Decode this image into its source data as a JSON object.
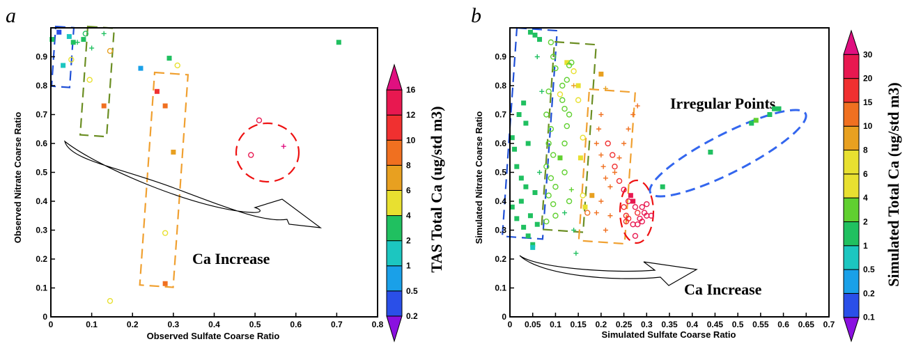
{
  "figure": {
    "panels": [
      {
        "id": "a",
        "letter": "a"
      },
      {
        "id": "b",
        "letter": "b"
      }
    ]
  },
  "colors": {
    "blue_dash": "#1f4fd6",
    "green_dash": "#6b8e23",
    "orange_dash": "#f0a030",
    "red_dash": "#ee1111",
    "blue_ellipse": "#3366ee",
    "arrow": "#000000"
  },
  "chart_data": [
    {
      "type": "scatter",
      "panel": "a",
      "xlabel": "Observed Sulfate Coarse Ratio",
      "ylabel": "Observed Nitrate Coarse Ratio",
      "xlim": [
        0,
        0.8
      ],
      "ylim": [
        0,
        1.0
      ],
      "xticks": [
        "0",
        "0.1",
        "0.2",
        "0.3",
        "0.4",
        "0.5",
        "0.6",
        "0.7",
        "0.8"
      ],
      "yticks": [
        "0",
        "0.1",
        "0.2",
        "0.3",
        "0.4",
        "0.5",
        "0.6",
        "0.7",
        "0.8",
        "0.9"
      ],
      "colorbar": {
        "label": "TAS Total Ca (ug/std m3)",
        "levels": [
          "0.2",
          "0.5",
          "1",
          "2",
          "4",
          "6",
          "8",
          "10",
          "12",
          "16"
        ]
      },
      "annotations": [
        {
          "text": "Ca Increase"
        }
      ],
      "points": [
        {
          "x": 0.003,
          "y": 0.96,
          "c": 2,
          "m": "sq"
        },
        {
          "x": 0.02,
          "y": 0.985,
          "c": 0.3,
          "m": "sq"
        },
        {
          "x": 0.03,
          "y": 0.87,
          "c": 1.5,
          "m": "sq"
        },
        {
          "x": 0.045,
          "y": 0.97,
          "c": 1.5,
          "m": "sq"
        },
        {
          "x": 0.055,
          "y": 0.95,
          "c": 2,
          "m": "sq"
        },
        {
          "x": 0.05,
          "y": 0.89,
          "c": 4,
          "m": "o"
        },
        {
          "x": 0.065,
          "y": 0.95,
          "c": 2,
          "m": "+"
        },
        {
          "x": 0.08,
          "y": 0.96,
          "c": 2,
          "m": "sq"
        },
        {
          "x": 0.085,
          "y": 0.98,
          "c": 3,
          "m": "o"
        },
        {
          "x": 0.1,
          "y": 0.93,
          "c": 3,
          "m": "+"
        },
        {
          "x": 0.095,
          "y": 0.82,
          "c": 4,
          "m": "o"
        },
        {
          "x": 0.13,
          "y": 0.98,
          "c": 3,
          "m": "+"
        },
        {
          "x": 0.145,
          "y": 0.92,
          "c": 6,
          "m": "o"
        },
        {
          "x": 0.13,
          "y": 0.73,
          "c": 9,
          "m": "sq"
        },
        {
          "x": 0.22,
          "y": 0.86,
          "c": 0.6,
          "m": "sq"
        },
        {
          "x": 0.29,
          "y": 0.895,
          "c": 3,
          "m": "sq"
        },
        {
          "x": 0.31,
          "y": 0.87,
          "c": 5,
          "m": "o"
        },
        {
          "x": 0.26,
          "y": 0.78,
          "c": 11,
          "m": "sq"
        },
        {
          "x": 0.28,
          "y": 0.73,
          "c": 9,
          "m": "sq"
        },
        {
          "x": 0.3,
          "y": 0.57,
          "c": 7,
          "m": "sq"
        },
        {
          "x": 0.28,
          "y": 0.29,
          "c": 5,
          "m": "o"
        },
        {
          "x": 0.28,
          "y": 0.115,
          "c": 9,
          "m": "sq"
        },
        {
          "x": 0.145,
          "y": 0.055,
          "c": 5,
          "m": "o"
        },
        {
          "x": 0.51,
          "y": 0.68,
          "c": 15,
          "m": "o"
        },
        {
          "x": 0.49,
          "y": 0.56,
          "c": 15,
          "m": "o"
        },
        {
          "x": 0.57,
          "y": 0.59,
          "c": 16,
          "m": "+"
        },
        {
          "x": 0.705,
          "y": 0.95,
          "c": 2,
          "m": "sq"
        }
      ]
    },
    {
      "type": "scatter",
      "panel": "b",
      "xlabel": "Simulated Sulfate Coarse Ratio",
      "ylabel": "Simulated Nitrate Coarse Ratio",
      "xlim": [
        0,
        0.7
      ],
      "ylim": [
        0,
        1.0
      ],
      "xticks": [
        "0",
        "0.05",
        "0.1",
        "0.15",
        "0.2",
        "0.25",
        "0.3",
        "0.35",
        "0.4",
        "0.45",
        "0.5",
        "0.55",
        "0.6",
        "0.65",
        "0.7"
      ],
      "yticks": [
        "0",
        "0.1",
        "0.2",
        "0.3",
        "0.4",
        "0.5",
        "0.6",
        "0.7",
        "0.8",
        "0.9"
      ],
      "colorbar": {
        "label": "Simulated Total Ca (ug/std m3)",
        "levels": [
          "0.1",
          "0.2",
          "0.5",
          "1",
          "2",
          "4",
          "6",
          "8",
          "10",
          "15",
          "20",
          "30"
        ]
      },
      "annotations": [
        {
          "text": "Irregular Points"
        },
        {
          "text": "Ca Increase"
        }
      ],
      "points": [
        {
          "x": 0.045,
          "y": 0.985,
          "c": 1.5,
          "m": "sq"
        },
        {
          "x": 0.055,
          "y": 0.975,
          "c": 1.5,
          "m": "sq"
        },
        {
          "x": 0.065,
          "y": 0.96,
          "c": 1.5,
          "m": "sq"
        },
        {
          "x": 0.005,
          "y": 0.62,
          "c": 1.5,
          "m": "sq"
        },
        {
          "x": 0.01,
          "y": 0.58,
          "c": 1,
          "m": "sq"
        },
        {
          "x": 0.02,
          "y": 0.7,
          "c": 1,
          "m": "sq"
        },
        {
          "x": 0.03,
          "y": 0.74,
          "c": 1.5,
          "m": "sq"
        },
        {
          "x": 0.015,
          "y": 0.52,
          "c": 1,
          "m": "sq"
        },
        {
          "x": 0.035,
          "y": 0.67,
          "c": 1,
          "m": "sq"
        },
        {
          "x": 0.025,
          "y": 0.48,
          "c": 1.5,
          "m": "sq"
        },
        {
          "x": 0.04,
          "y": 0.6,
          "c": 1,
          "m": "sq"
        },
        {
          "x": 0.005,
          "y": 0.38,
          "c": 1,
          "m": "sq"
        },
        {
          "x": 0.015,
          "y": 0.34,
          "c": 1,
          "m": "sq"
        },
        {
          "x": 0.025,
          "y": 0.4,
          "c": 1.5,
          "m": "sq"
        },
        {
          "x": 0.03,
          "y": 0.31,
          "c": 1,
          "m": "sq"
        },
        {
          "x": 0.04,
          "y": 0.28,
          "c": 1,
          "m": "sq"
        },
        {
          "x": 0.05,
          "y": 0.25,
          "c": 1,
          "m": "sq"
        },
        {
          "x": 0.045,
          "y": 0.35,
          "c": 1.5,
          "m": "sq"
        },
        {
          "x": 0.055,
          "y": 0.43,
          "c": 1,
          "m": "sq"
        },
        {
          "x": 0.06,
          "y": 0.32,
          "c": 1,
          "m": "sq"
        },
        {
          "x": 0.035,
          "y": 0.45,
          "c": 1,
          "m": "sq"
        },
        {
          "x": 0.05,
          "y": 0.24,
          "c": 0.6,
          "m": "sq"
        },
        {
          "x": 0.06,
          "y": 0.9,
          "c": 1.5,
          "m": "+"
        },
        {
          "x": 0.07,
          "y": 0.78,
          "c": 1.5,
          "m": "+"
        },
        {
          "x": 0.065,
          "y": 0.5,
          "c": 1.5,
          "m": "+"
        },
        {
          "x": 0.09,
          "y": 0.95,
          "c": 2,
          "m": "o"
        },
        {
          "x": 0.095,
          "y": 0.9,
          "c": 2.5,
          "m": "o"
        },
        {
          "x": 0.1,
          "y": 0.86,
          "c": 3,
          "m": "o"
        },
        {
          "x": 0.085,
          "y": 0.78,
          "c": 2.5,
          "m": "o"
        },
        {
          "x": 0.08,
          "y": 0.7,
          "c": 2,
          "m": "o"
        },
        {
          "x": 0.09,
          "y": 0.65,
          "c": 2.5,
          "m": "o"
        },
        {
          "x": 0.085,
          "y": 0.6,
          "c": 2,
          "m": "o"
        },
        {
          "x": 0.095,
          "y": 0.56,
          "c": 2,
          "m": "o"
        },
        {
          "x": 0.08,
          "y": 0.52,
          "c": 2.5,
          "m": "o"
        },
        {
          "x": 0.09,
          "y": 0.48,
          "c": 2,
          "m": "o"
        },
        {
          "x": 0.1,
          "y": 0.45,
          "c": 2.5,
          "m": "o"
        },
        {
          "x": 0.085,
          "y": 0.42,
          "c": 2,
          "m": "o"
        },
        {
          "x": 0.095,
          "y": 0.39,
          "c": 3,
          "m": "o"
        },
        {
          "x": 0.1,
          "y": 0.35,
          "c": 2,
          "m": "o"
        },
        {
          "x": 0.08,
          "y": 0.33,
          "c": 2,
          "m": "o"
        },
        {
          "x": 0.11,
          "y": 0.55,
          "c": 3,
          "m": "sq"
        },
        {
          "x": 0.12,
          "y": 0.5,
          "c": 3,
          "m": "o"
        },
        {
          "x": 0.125,
          "y": 0.88,
          "c": 4,
          "m": "sq"
        },
        {
          "x": 0.13,
          "y": 0.87,
          "c": 3,
          "m": "o"
        },
        {
          "x": 0.135,
          "y": 0.88,
          "c": 3.5,
          "m": "o"
        },
        {
          "x": 0.14,
          "y": 0.85,
          "c": 6,
          "m": "o"
        },
        {
          "x": 0.125,
          "y": 0.82,
          "c": 3,
          "m": "o"
        },
        {
          "x": 0.115,
          "y": 0.8,
          "c": 3.5,
          "m": "o"
        },
        {
          "x": 0.11,
          "y": 0.77,
          "c": 4,
          "m": "o"
        },
        {
          "x": 0.115,
          "y": 0.75,
          "c": 3,
          "m": "o"
        },
        {
          "x": 0.12,
          "y": 0.72,
          "c": 2,
          "m": "o"
        },
        {
          "x": 0.13,
          "y": 0.7,
          "c": 3.5,
          "m": "o"
        },
        {
          "x": 0.125,
          "y": 0.66,
          "c": 3,
          "m": "o"
        },
        {
          "x": 0.12,
          "y": 0.6,
          "c": 2,
          "m": "o"
        },
        {
          "x": 0.13,
          "y": 0.4,
          "c": 3,
          "m": "o"
        },
        {
          "x": 0.135,
          "y": 0.44,
          "c": 2,
          "m": "+"
        },
        {
          "x": 0.12,
          "y": 0.36,
          "c": 1.5,
          "m": "+"
        },
        {
          "x": 0.14,
          "y": 0.3,
          "c": 1.5,
          "m": "+"
        },
        {
          "x": 0.145,
          "y": 0.22,
          "c": 1.5,
          "m": "+"
        },
        {
          "x": 0.15,
          "y": 0.8,
          "c": 7,
          "m": "sq"
        },
        {
          "x": 0.15,
          "y": 0.75,
          "c": 5,
          "m": "o"
        },
        {
          "x": 0.16,
          "y": 0.62,
          "c": 4,
          "m": "o"
        },
        {
          "x": 0.155,
          "y": 0.55,
          "c": 6,
          "m": "sq"
        },
        {
          "x": 0.16,
          "y": 0.42,
          "c": 7,
          "m": "o"
        },
        {
          "x": 0.165,
          "y": 0.38,
          "c": 6,
          "m": "sq"
        },
        {
          "x": 0.17,
          "y": 0.36,
          "c": 10,
          "m": "o"
        },
        {
          "x": 0.14,
          "y": 0.8,
          "c": 9,
          "m": "+"
        },
        {
          "x": 0.2,
          "y": 0.84,
          "c": 9,
          "m": "sq"
        },
        {
          "x": 0.21,
          "y": 0.79,
          "c": 8,
          "m": "+"
        },
        {
          "x": 0.2,
          "y": 0.7,
          "c": 11,
          "m": "+"
        },
        {
          "x": 0.195,
          "y": 0.65,
          "c": 12,
          "m": "+"
        },
        {
          "x": 0.19,
          "y": 0.6,
          "c": 11,
          "m": "+"
        },
        {
          "x": 0.2,
          "y": 0.56,
          "c": 12,
          "m": "+"
        },
        {
          "x": 0.205,
          "y": 0.52,
          "c": 11,
          "m": "+"
        },
        {
          "x": 0.21,
          "y": 0.48,
          "c": 12,
          "m": "+"
        },
        {
          "x": 0.22,
          "y": 0.45,
          "c": 11,
          "m": "+"
        },
        {
          "x": 0.23,
          "y": 0.5,
          "c": 12,
          "m": "+"
        },
        {
          "x": 0.24,
          "y": 0.55,
          "c": 11,
          "m": "+"
        },
        {
          "x": 0.25,
          "y": 0.6,
          "c": 12,
          "m": "+"
        },
        {
          "x": 0.26,
          "y": 0.65,
          "c": 11,
          "m": "+"
        },
        {
          "x": 0.27,
          "y": 0.7,
          "c": 12,
          "m": "+"
        },
        {
          "x": 0.28,
          "y": 0.73,
          "c": 11,
          "m": "+"
        },
        {
          "x": 0.2,
          "y": 0.4,
          "c": 12,
          "m": "+"
        },
        {
          "x": 0.19,
          "y": 0.36,
          "c": 11,
          "m": "+"
        },
        {
          "x": 0.22,
          "y": 0.35,
          "c": 10,
          "m": "+"
        },
        {
          "x": 0.21,
          "y": 0.3,
          "c": 12,
          "m": "+"
        },
        {
          "x": 0.18,
          "y": 0.42,
          "c": 8,
          "m": "sq"
        },
        {
          "x": 0.215,
          "y": 0.6,
          "c": 17,
          "m": "o"
        },
        {
          "x": 0.225,
          "y": 0.56,
          "c": 16,
          "m": "o"
        },
        {
          "x": 0.23,
          "y": 0.52,
          "c": 15,
          "m": "o"
        },
        {
          "x": 0.24,
          "y": 0.47,
          "c": 17,
          "m": "o"
        },
        {
          "x": 0.25,
          "y": 0.38,
          "c": 16,
          "m": "o"
        },
        {
          "x": 0.255,
          "y": 0.35,
          "c": 18,
          "m": "o"
        },
        {
          "x": 0.26,
          "y": 0.4,
          "c": 20,
          "m": "o"
        },
        {
          "x": 0.265,
          "y": 0.42,
          "c": 21,
          "m": "sq"
        },
        {
          "x": 0.27,
          "y": 0.4,
          "c": 23,
          "m": "sq"
        },
        {
          "x": 0.275,
          "y": 0.38,
          "c": 22,
          "m": "o"
        },
        {
          "x": 0.28,
          "y": 0.36,
          "c": 19,
          "m": "o"
        },
        {
          "x": 0.285,
          "y": 0.34,
          "c": 24,
          "m": "o"
        },
        {
          "x": 0.29,
          "y": 0.38,
          "c": 25,
          "m": "o"
        },
        {
          "x": 0.295,
          "y": 0.36,
          "c": 23,
          "m": "o"
        },
        {
          "x": 0.3,
          "y": 0.35,
          "c": 26,
          "m": "o"
        },
        {
          "x": 0.26,
          "y": 0.34,
          "c": 19,
          "m": "o"
        },
        {
          "x": 0.27,
          "y": 0.32,
          "c": 21,
          "m": "o"
        },
        {
          "x": 0.28,
          "y": 0.32,
          "c": 20,
          "m": "o"
        },
        {
          "x": 0.29,
          "y": 0.33,
          "c": 22,
          "m": "o"
        },
        {
          "x": 0.3,
          "y": 0.39,
          "c": 24,
          "m": "o"
        },
        {
          "x": 0.25,
          "y": 0.44,
          "c": 22,
          "m": "o"
        },
        {
          "x": 0.255,
          "y": 0.33,
          "c": 19,
          "m": "o"
        },
        {
          "x": 0.275,
          "y": 0.28,
          "c": 25,
          "m": "o"
        },
        {
          "x": 0.31,
          "y": 0.35,
          "c": 28,
          "m": "o"
        },
        {
          "x": 0.335,
          "y": 0.45,
          "c": 1.5,
          "m": "sq"
        },
        {
          "x": 0.44,
          "y": 0.57,
          "c": 1.5,
          "m": "sq"
        },
        {
          "x": 0.53,
          "y": 0.67,
          "c": 1.5,
          "m": "sq"
        },
        {
          "x": 0.54,
          "y": 0.68,
          "c": 2,
          "m": "sq"
        },
        {
          "x": 0.57,
          "y": 0.7,
          "c": 1.5,
          "m": "sq"
        },
        {
          "x": 0.58,
          "y": 0.72,
          "c": 1.5,
          "m": "sq"
        },
        {
          "x": 0.59,
          "y": 0.72,
          "c": 1.5,
          "m": "sq"
        }
      ]
    }
  ]
}
